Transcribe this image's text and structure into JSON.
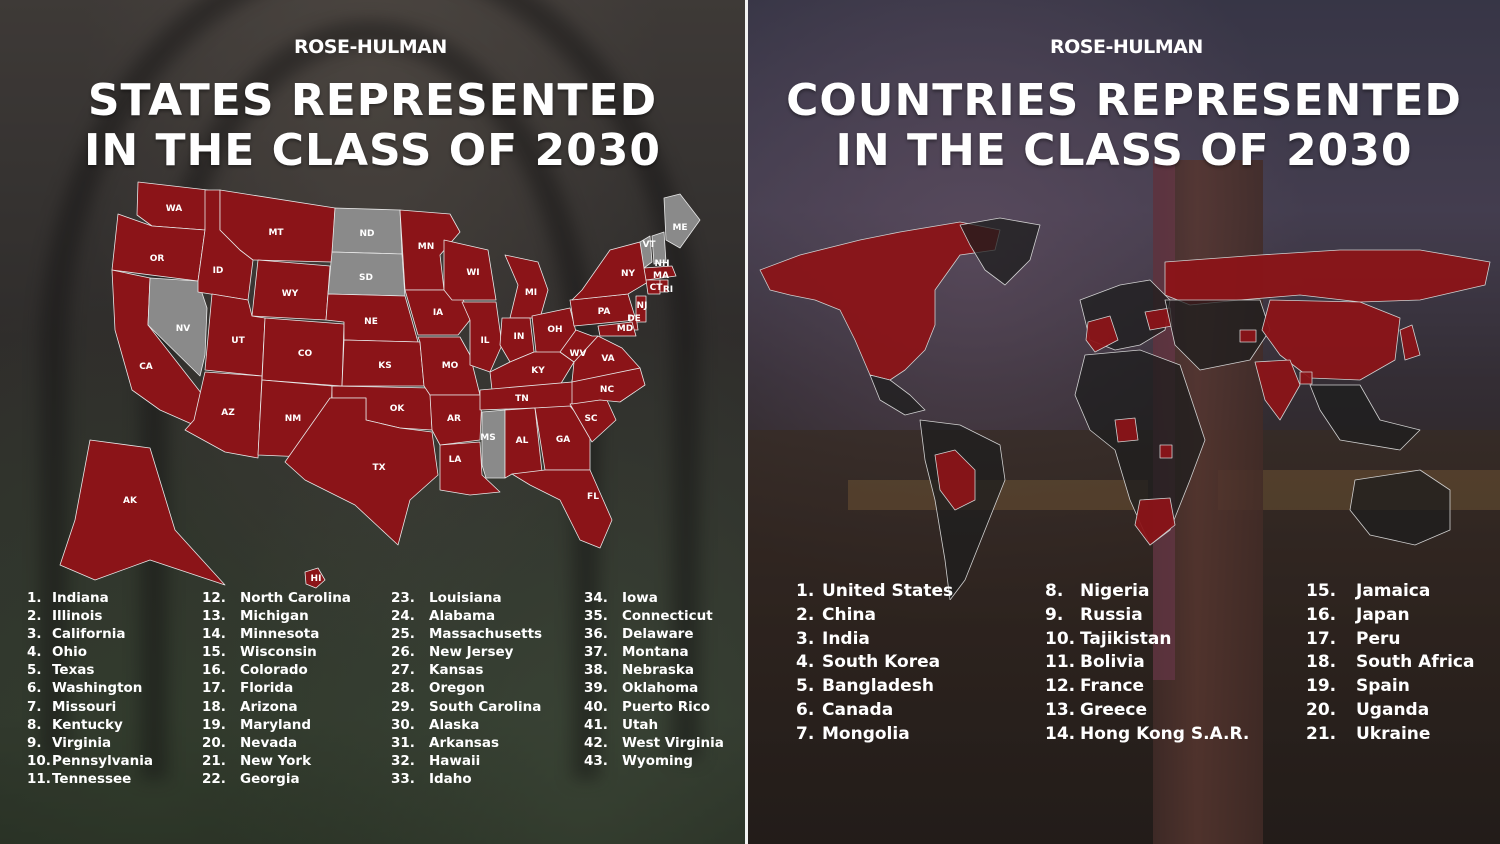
{
  "left": {
    "logo": "ROSE-HULMAN",
    "title_line1": "STATES REPRESENTED",
    "title_line2": "IN THE CLASS OF 2030",
    "map_labels": [
      "WA",
      "OR",
      "CA",
      "NV",
      "ID",
      "MT",
      "WY",
      "UT",
      "AZ",
      "CO",
      "NM",
      "ND",
      "SD",
      "NE",
      "KS",
      "OK",
      "TX",
      "MN",
      "IA",
      "MO",
      "AR",
      "LA",
      "WI",
      "IL",
      "MI",
      "IN",
      "OH",
      "KY",
      "TN",
      "MS",
      "AL",
      "GA",
      "FL",
      "SC",
      "NC",
      "VA",
      "WV",
      "PA",
      "NY",
      "ME",
      "VT",
      "NH",
      "MA",
      "CT",
      "RI",
      "NJ",
      "DE",
      "MD",
      "AK",
      "HI"
    ],
    "map_colors": {
      "represented": "#8b1418",
      "not_represented": "#8a8a8a",
      "border": "#e8e8e8"
    },
    "states": [
      "Indiana",
      "Illinois",
      "California",
      "Ohio",
      "Texas",
      "Washington",
      "Missouri",
      "Kentucky",
      "Virginia",
      "Pennsylvania",
      "Tennessee",
      "North Carolina",
      "Michigan",
      "Minnesota",
      "Wisconsin",
      "Colorado",
      "Florida",
      "Arizona",
      "Maryland",
      "Nevada",
      "New York",
      "Georgia",
      "Louisiana",
      "Alabama",
      "Massachusetts",
      "New Jersey",
      "Kansas",
      "Oregon",
      "South Carolina",
      "Alaska",
      "Arkansas",
      "Hawaii",
      "Idaho",
      "Iowa",
      "Connecticut",
      "Delaware",
      "Montana",
      "Nebraska",
      "Oklahoma",
      "Puerto Rico",
      "Utah",
      "West Virginia",
      "Wyoming"
    ]
  },
  "right": {
    "logo": "ROSE-HULMAN",
    "title_line1": "COUNTRIES REPRESENTED",
    "title_line2": "IN THE CLASS OF 2030",
    "map_colors": {
      "represented": "#8b1418",
      "not_represented": "#1e1e1e",
      "border": "#d0d0d0"
    },
    "countries": [
      "United States",
      "China",
      "India",
      "South Korea",
      "Bangladesh",
      "Canada",
      "Mongolia",
      "Nigeria",
      "Russia",
      "Tajikistan",
      "Bolivia",
      "France",
      "Greece",
      "Hong Kong S.A.R.",
      "Jamaica",
      "Japan",
      "Peru",
      "South Africa",
      "Spain",
      "Uganda",
      "Ukraine"
    ]
  }
}
